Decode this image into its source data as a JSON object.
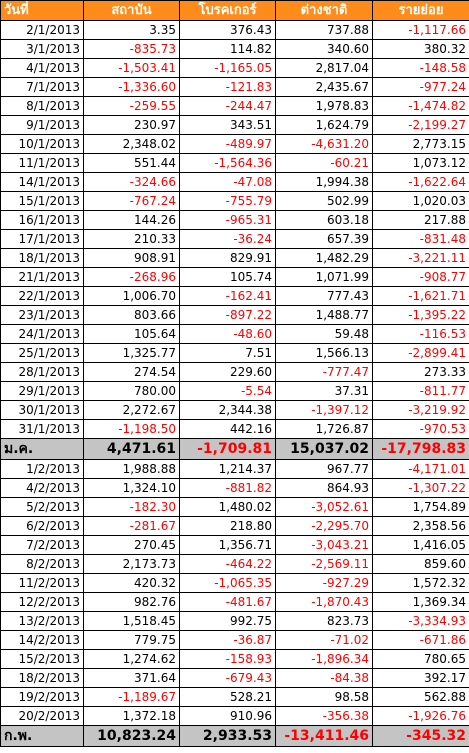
{
  "colors": {
    "header_bg": "#ff8c1a",
    "header_text": "#ffffff",
    "summary_bg": "#c4c4c4",
    "negative": "#ff0000"
  },
  "columns": [
    "วันที่",
    "สถาบัน",
    "โบรคเกอร์",
    "ต่างชาติ",
    "รายย่อย"
  ],
  "sections": [
    {
      "rows": [
        [
          "2/1/2013",
          "3.35",
          "376.43",
          "737.88",
          "-1,117.66"
        ],
        [
          "3/1/2013",
          "-835.73",
          "114.82",
          "340.60",
          "380.32"
        ],
        [
          "4/1/2013",
          "-1,503.41",
          "-1,165.05",
          "2,817.04",
          "-148.58"
        ],
        [
          "7/1/2013",
          "-1,336.60",
          "-121.83",
          "2,435.67",
          "-977.24"
        ],
        [
          "8/1/2013",
          "-259.55",
          "-244.47",
          "1,978.83",
          "-1,474.82"
        ],
        [
          "9/1/2013",
          "230.97",
          "343.51",
          "1,624.79",
          "-2,199.27"
        ],
        [
          "10/1/2013",
          "2,348.02",
          "-489.97",
          "-4,631.20",
          "2,773.15"
        ],
        [
          "11/1/2013",
          "551.44",
          "-1,564.36",
          "-60.21",
          "1,073.12"
        ],
        [
          "14/1/2013",
          "-324.66",
          "-47.08",
          "1,994.38",
          "-1,622.64"
        ],
        [
          "15/1/2013",
          "-767.24",
          "-755.79",
          "502.99",
          "1,020.03"
        ],
        [
          "16/1/2013",
          "144.26",
          "-965.31",
          "603.18",
          "217.88"
        ],
        [
          "17/1/2013",
          "210.33",
          "-36.24",
          "657.39",
          "-831.48"
        ],
        [
          "18/1/2013",
          "908.91",
          "829.91",
          "1,482.29",
          "-3,221.11"
        ],
        [
          "21/1/2013",
          "-268.96",
          "105.74",
          "1,071.99",
          "-908.77"
        ],
        [
          "22/1/2013",
          "1,006.70",
          "-162.41",
          "777.43",
          "-1,621.71"
        ],
        [
          "23/1/2013",
          "803.66",
          "-897.22",
          "1,488.77",
          "-1,395.22"
        ],
        [
          "24/1/2013",
          "105.64",
          "-48.60",
          "59.48",
          "-116.53"
        ],
        [
          "25/1/2013",
          "1,325.77",
          "7.51",
          "1,566.13",
          "-2,899.41"
        ],
        [
          "28/1/2013",
          "274.54",
          "229.60",
          "-777.47",
          "273.33"
        ],
        [
          "29/1/2013",
          "780.00",
          "-5.54",
          "37.31",
          "-811.77"
        ],
        [
          "30/1/2013",
          "2,272.67",
          "2,344.38",
          "-1,397.12",
          "-3,219.92"
        ],
        [
          "31/1/2013",
          "-1,198.50",
          "442.16",
          "1,726.87",
          "-970.53"
        ]
      ],
      "summary": [
        "ม.ค.",
        "4,471.61",
        "-1,709.81",
        "15,037.02",
        "-17,798.83"
      ]
    },
    {
      "rows": [
        [
          "1/2/2013",
          "1,988.88",
          "1,214.37",
          "967.77",
          "-4,171.01"
        ],
        [
          "4/2/2013",
          "1,324.10",
          "-881.82",
          "864.93",
          "-1,307.22"
        ],
        [
          "5/2/2013",
          "-182.30",
          "1,480.02",
          "-3,052.61",
          "1,754.89"
        ],
        [
          "6/2/2013",
          "-281.67",
          "218.80",
          "-2,295.70",
          "2,358.56"
        ],
        [
          "7/2/2013",
          "270.45",
          "1,356.71",
          "-3,043.21",
          "1,416.05"
        ],
        [
          "8/2/2013",
          "2,173.73",
          "-464.22",
          "-2,569.11",
          "859.60"
        ],
        [
          "11/2/2013",
          "420.32",
          "-1,065.35",
          "-927.29",
          "1,572.32"
        ],
        [
          "12/2/2013",
          "982.76",
          "-481.67",
          "-1,870.43",
          "1,369.34"
        ],
        [
          "13/2/2013",
          "1,518.45",
          "992.75",
          "823.73",
          "-3,334.93"
        ],
        [
          "14/2/2013",
          "779.75",
          "-36.87",
          "-71.02",
          "-671.86"
        ],
        [
          "15/2/2013",
          "1,274.62",
          "-158.93",
          "-1,896.34",
          "780.65"
        ],
        [
          "18/2/2013",
          "371.64",
          "-679.43",
          "-84.38",
          "392.17"
        ],
        [
          "19/2/2013",
          "-1,189.67",
          "528.21",
          "98.58",
          "562.88"
        ],
        [
          "20/2/2013",
          "1,372.18",
          "910.96",
          "-356.38",
          "-1,926.76"
        ]
      ],
      "summary": [
        "ก.พ.",
        "10,823.24",
        "2,933.53",
        "-13,411.46",
        "-345.32"
      ]
    }
  ]
}
